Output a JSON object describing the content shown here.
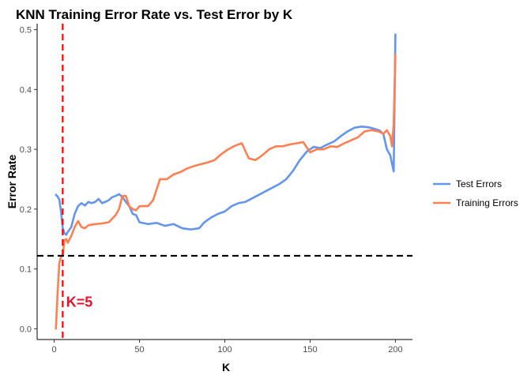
{
  "chart_data": {
    "type": "line",
    "title": "KNN Training Error Rate vs. Test Error by K",
    "xlabel": "K",
    "ylabel": "Error Rate",
    "xlim": [
      -10,
      210
    ],
    "ylim": [
      -0.018,
      0.51
    ],
    "x_ticks": [
      0,
      50,
      100,
      150,
      200
    ],
    "y_ticks": [
      0.0,
      0.1,
      0.2,
      0.3,
      0.4,
      0.5
    ],
    "x_tick_labels": [
      "0",
      "50",
      "100",
      "150",
      "200"
    ],
    "y_tick_labels": [
      "0.0",
      "0.1",
      "0.2",
      "0.3",
      "0.4",
      "0.5"
    ],
    "grid": false,
    "legend_position": "right",
    "series": [
      {
        "name": "Test Errors",
        "color": "#6495ED",
        "points": [
          [
            1,
            0.224
          ],
          [
            2,
            0.221
          ],
          [
            3,
            0.216
          ],
          [
            4,
            0.196
          ],
          [
            5,
            0.168
          ],
          [
            6,
            0.16
          ],
          [
            7,
            0.157
          ],
          [
            8,
            0.162
          ],
          [
            10,
            0.17
          ],
          [
            12,
            0.192
          ],
          [
            14,
            0.205
          ],
          [
            16,
            0.21
          ],
          [
            18,
            0.206
          ],
          [
            20,
            0.212
          ],
          [
            22,
            0.21
          ],
          [
            24,
            0.212
          ],
          [
            26,
            0.217
          ],
          [
            28,
            0.21
          ],
          [
            30,
            0.212
          ],
          [
            32,
            0.215
          ],
          [
            34,
            0.22
          ],
          [
            36,
            0.222
          ],
          [
            38,
            0.225
          ],
          [
            40,
            0.22
          ],
          [
            42,
            0.212
          ],
          [
            44,
            0.205
          ],
          [
            46,
            0.192
          ],
          [
            48,
            0.19
          ],
          [
            50,
            0.178
          ],
          [
            55,
            0.175
          ],
          [
            60,
            0.177
          ],
          [
            65,
            0.172
          ],
          [
            70,
            0.175
          ],
          [
            75,
            0.168
          ],
          [
            80,
            0.166
          ],
          [
            85,
            0.168
          ],
          [
            88,
            0.178
          ],
          [
            92,
            0.186
          ],
          [
            96,
            0.192
          ],
          [
            100,
            0.196
          ],
          [
            104,
            0.205
          ],
          [
            108,
            0.21
          ],
          [
            112,
            0.212
          ],
          [
            116,
            0.218
          ],
          [
            120,
            0.224
          ],
          [
            124,
            0.23
          ],
          [
            128,
            0.236
          ],
          [
            132,
            0.242
          ],
          [
            136,
            0.25
          ],
          [
            140,
            0.264
          ],
          [
            144,
            0.282
          ],
          [
            148,
            0.296
          ],
          [
            152,
            0.304
          ],
          [
            156,
            0.302
          ],
          [
            160,
            0.308
          ],
          [
            164,
            0.313
          ],
          [
            168,
            0.322
          ],
          [
            172,
            0.33
          ],
          [
            176,
            0.336
          ],
          [
            180,
            0.338
          ],
          [
            184,
            0.337
          ],
          [
            188,
            0.334
          ],
          [
            191,
            0.331
          ],
          [
            193,
            0.325
          ],
          [
            195,
            0.3
          ],
          [
            197,
            0.29
          ],
          [
            198,
            0.276
          ],
          [
            199,
            0.263
          ],
          [
            200,
            0.492
          ]
        ]
      },
      {
        "name": "Training Errors",
        "color": "#FF7F50",
        "points": [
          [
            1,
            0.0
          ],
          [
            2,
            0.06
          ],
          [
            3,
            0.11
          ],
          [
            4,
            0.12
          ],
          [
            5,
            0.122
          ],
          [
            6,
            0.148
          ],
          [
            7,
            0.15
          ],
          [
            8,
            0.144
          ],
          [
            10,
            0.155
          ],
          [
            12,
            0.17
          ],
          [
            14,
            0.18
          ],
          [
            16,
            0.17
          ],
          [
            18,
            0.168
          ],
          [
            20,
            0.173
          ],
          [
            24,
            0.175
          ],
          [
            28,
            0.176
          ],
          [
            32,
            0.178
          ],
          [
            36,
            0.19
          ],
          [
            38,
            0.2
          ],
          [
            40,
            0.222
          ],
          [
            42,
            0.222
          ],
          [
            44,
            0.205
          ],
          [
            46,
            0.2
          ],
          [
            48,
            0.198
          ],
          [
            50,
            0.205
          ],
          [
            55,
            0.205
          ],
          [
            58,
            0.215
          ],
          [
            62,
            0.25
          ],
          [
            66,
            0.25
          ],
          [
            70,
            0.258
          ],
          [
            74,
            0.262
          ],
          [
            78,
            0.268
          ],
          [
            82,
            0.272
          ],
          [
            86,
            0.275
          ],
          [
            90,
            0.278
          ],
          [
            94,
            0.282
          ],
          [
            98,
            0.292
          ],
          [
            102,
            0.3
          ],
          [
            106,
            0.306
          ],
          [
            110,
            0.31
          ],
          [
            114,
            0.285
          ],
          [
            118,
            0.282
          ],
          [
            122,
            0.29
          ],
          [
            126,
            0.3
          ],
          [
            130,
            0.305
          ],
          [
            134,
            0.305
          ],
          [
            138,
            0.308
          ],
          [
            142,
            0.31
          ],
          [
            146,
            0.312
          ],
          [
            150,
            0.295
          ],
          [
            154,
            0.3
          ],
          [
            158,
            0.3
          ],
          [
            162,
            0.305
          ],
          [
            166,
            0.304
          ],
          [
            170,
            0.31
          ],
          [
            174,
            0.315
          ],
          [
            178,
            0.32
          ],
          [
            182,
            0.33
          ],
          [
            186,
            0.332
          ],
          [
            190,
            0.33
          ],
          [
            193,
            0.326
          ],
          [
            195,
            0.332
          ],
          [
            197,
            0.322
          ],
          [
            198,
            0.305
          ],
          [
            199,
            0.342
          ],
          [
            200,
            0.458
          ]
        ]
      }
    ],
    "reference_lines": [
      {
        "orientation": "vertical",
        "x": 5,
        "color": "#FF0000",
        "style": "dashed"
      },
      {
        "orientation": "horizontal",
        "y": 0.122,
        "color": "#000000",
        "style": "dashed"
      }
    ],
    "annotation": {
      "text": "K=5",
      "x": 7,
      "y": 0.045,
      "color": "#E8112D"
    }
  }
}
